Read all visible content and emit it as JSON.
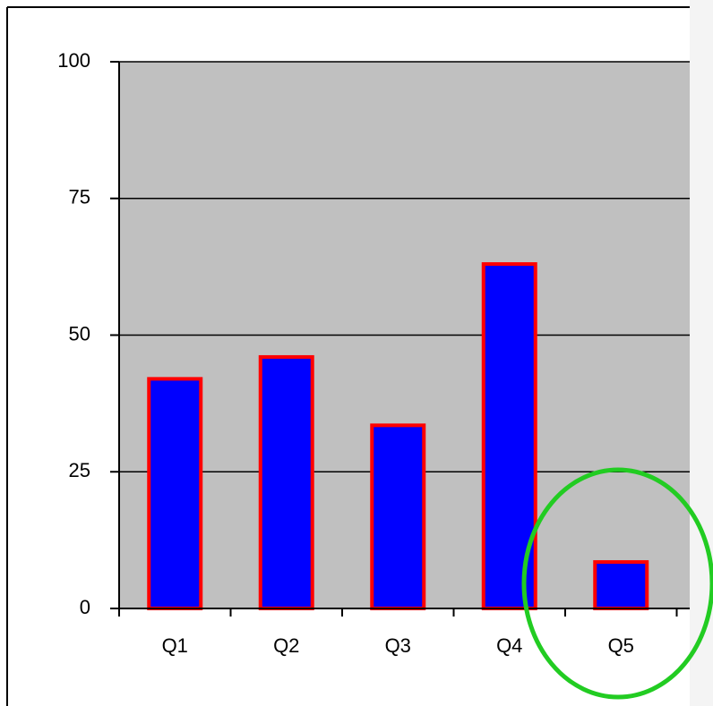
{
  "chart_data": {
    "type": "bar",
    "categories": [
      "Q1",
      "Q2",
      "Q3",
      "Q4",
      "Q5"
    ],
    "values": [
      42,
      46,
      33.5,
      63,
      8.5
    ],
    "color": "#0000ff",
    "edge_color": "#ff0000",
    "plot_background": "#c0c0c0",
    "ylim": [
      0,
      100
    ],
    "yticks": [
      0,
      25,
      50,
      75,
      100
    ],
    "grid": true
  }
}
